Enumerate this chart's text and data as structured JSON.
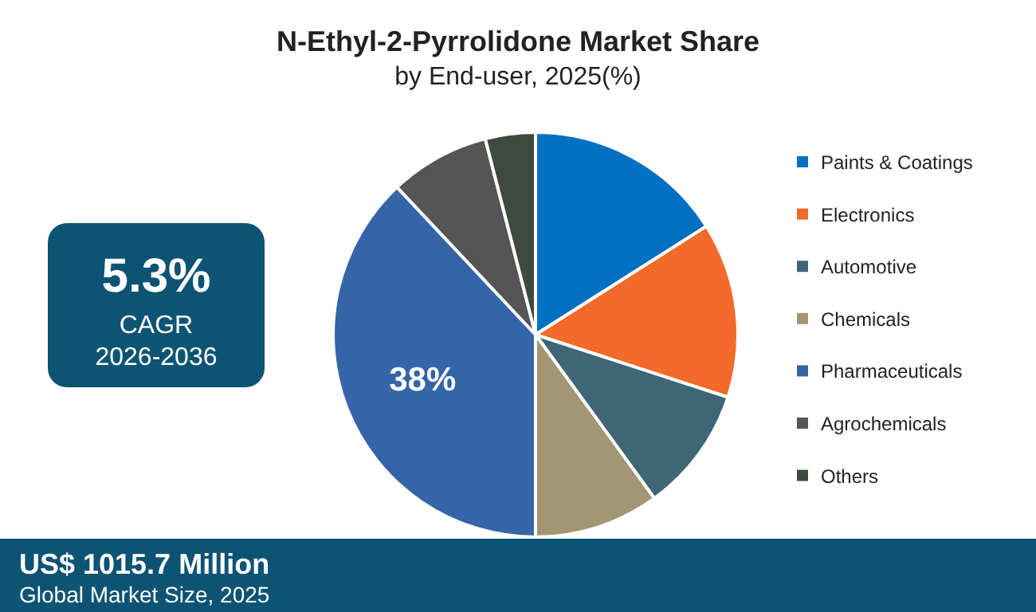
{
  "chart_data": {
    "type": "pie",
    "title": "N-Ethyl-2-Pyrrolidone Market Share",
    "subtitle": "by End-user, 2025(%)",
    "categories": [
      "Paints & Coatings",
      "Electronics",
      "Automotive",
      "Chemicals",
      "Pharmaceuticals",
      "Agrochemicals",
      "Others"
    ],
    "values": [
      16,
      14,
      10,
      10,
      38,
      8,
      4
    ],
    "colors": [
      "#0070c0",
      "#f26b2a",
      "#3f6674",
      "#a39673",
      "#3565a8",
      "#555555",
      "#3e4a3e"
    ],
    "value_labels": [
      null,
      null,
      null,
      null,
      "38%",
      null,
      null
    ],
    "legend": "right",
    "annotations": [
      "5.3%",
      "CAGR",
      "2026-2036",
      "US$ 1015.7 Million",
      "Global Market Size, 2025"
    ]
  }
}
